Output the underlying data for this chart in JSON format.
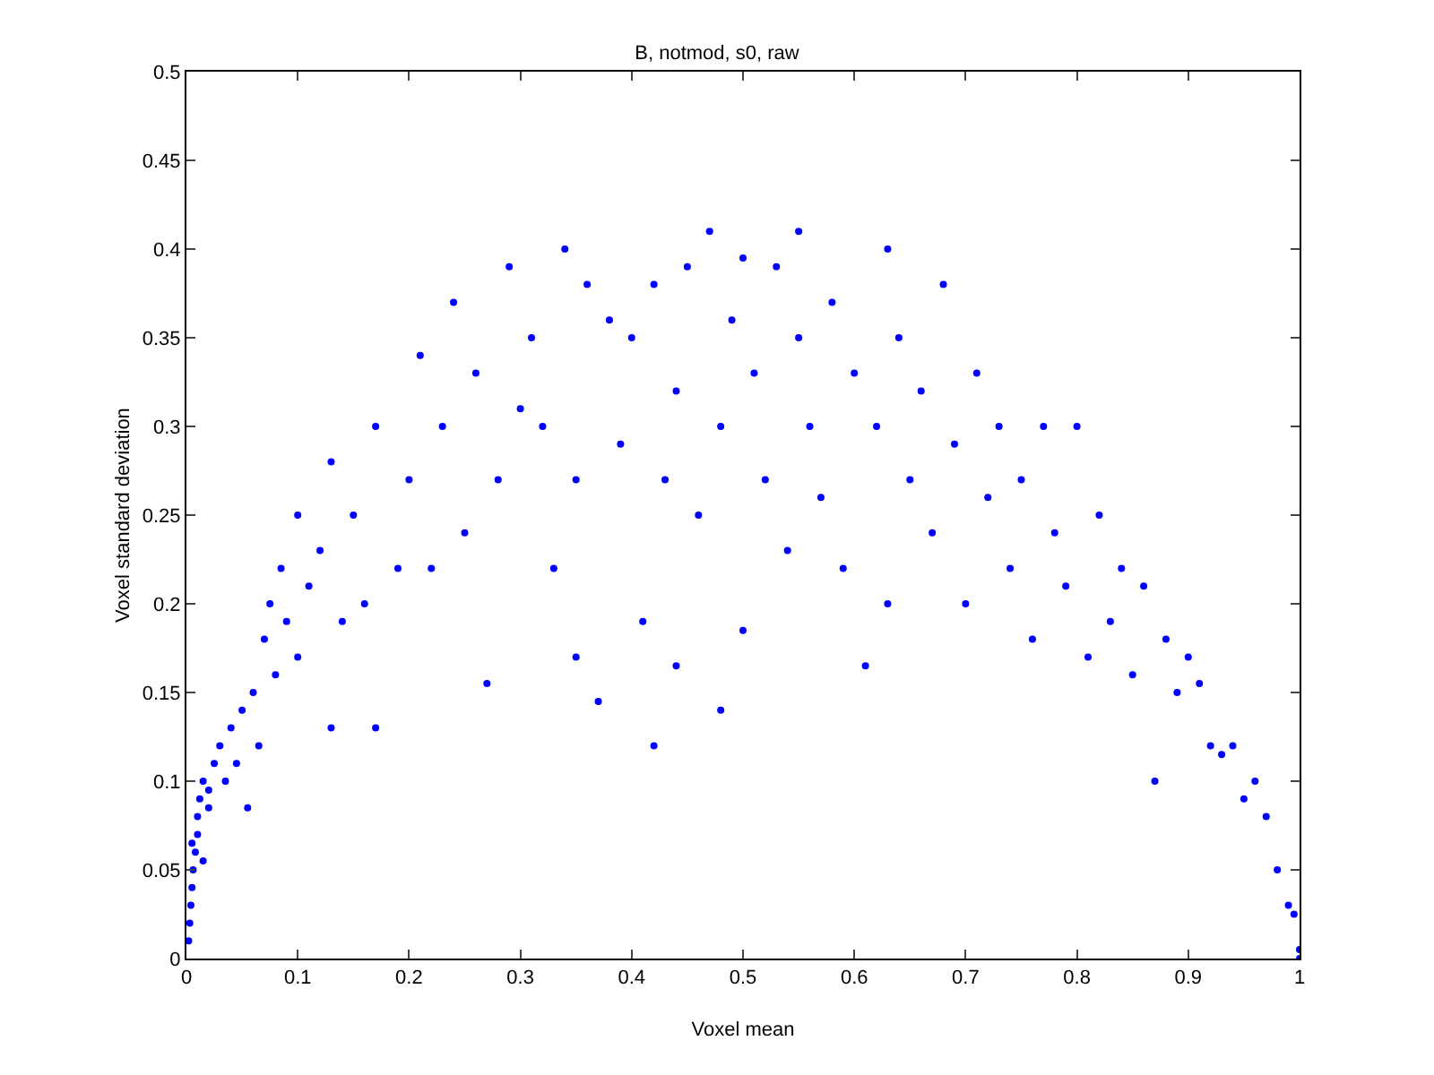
{
  "chart_data": {
    "type": "scatter",
    "title": "B, notmod, s0, raw",
    "xlabel": "Voxel mean",
    "ylabel": "Voxel standard deviation",
    "xlim": [
      0,
      1
    ],
    "ylim": [
      0,
      0.5
    ],
    "xticks": [
      0,
      0.1,
      0.2,
      0.3,
      0.4,
      0.5,
      0.6,
      0.7,
      0.8,
      0.9,
      1
    ],
    "yticks": [
      0,
      0.05,
      0.1,
      0.15,
      0.2,
      0.25,
      0.3,
      0.35,
      0.4,
      0.45,
      0.5
    ],
    "grid": false,
    "marker": "circle",
    "series": [
      {
        "color": "#0000ff",
        "x": [
          0.002,
          0.003,
          0.004,
          0.005,
          0.006,
          0.008,
          0.01,
          0.01,
          0.012,
          0.015,
          0.02,
          0.025,
          0.03,
          0.005,
          0.015,
          0.02,
          0.035,
          0.04,
          0.045,
          0.05,
          0.055,
          0.06,
          0.065,
          0.07,
          0.075,
          0.08,
          0.085,
          0.09,
          0.1,
          0.1,
          0.11,
          0.12,
          0.13,
          0.13,
          0.14,
          0.15,
          0.16,
          0.17,
          0.17,
          0.19,
          0.2,
          0.21,
          0.22,
          0.23,
          0.24,
          0.25,
          0.26,
          0.27,
          0.28,
          0.29,
          0.3,
          0.31,
          0.32,
          0.33,
          0.34,
          0.35,
          0.35,
          0.36,
          0.37,
          0.38,
          0.39,
          0.4,
          0.41,
          0.42,
          0.42,
          0.43,
          0.44,
          0.44,
          0.45,
          0.46,
          0.47,
          0.48,
          0.48,
          0.49,
          0.5,
          0.5,
          0.51,
          0.52,
          0.53,
          0.54,
          0.55,
          0.55,
          0.56,
          0.57,
          0.58,
          0.59,
          0.6,
          0.61,
          0.62,
          0.63,
          0.63,
          0.64,
          0.65,
          0.66,
          0.67,
          0.68,
          0.69,
          0.7,
          0.71,
          0.72,
          0.73,
          0.74,
          0.75,
          0.76,
          0.77,
          0.78,
          0.79,
          0.8,
          0.81,
          0.82,
          0.83,
          0.84,
          0.85,
          0.86,
          0.87,
          0.88,
          0.89,
          0.9,
          0.91,
          0.92,
          0.93,
          0.94,
          0.95,
          0.96,
          0.97,
          0.98,
          0.99,
          0.995,
          1,
          1
        ],
        "values": [
          0.01,
          0.02,
          0.03,
          0.04,
          0.05,
          0.06,
          0.07,
          0.08,
          0.09,
          0.1,
          0.085,
          0.11,
          0.12,
          0.065,
          0.055,
          0.095,
          0.1,
          0.13,
          0.11,
          0.14,
          0.085,
          0.15,
          0.12,
          0.18,
          0.2,
          0.16,
          0.22,
          0.19,
          0.17,
          0.25,
          0.21,
          0.23,
          0.28,
          0.13,
          0.19,
          0.25,
          0.2,
          0.3,
          0.13,
          0.22,
          0.27,
          0.34,
          0.22,
          0.3,
          0.37,
          0.24,
          0.33,
          0.155,
          0.27,
          0.39,
          0.31,
          0.35,
          0.3,
          0.22,
          0.4,
          0.27,
          0.17,
          0.38,
          0.145,
          0.36,
          0.29,
          0.35,
          0.19,
          0.38,
          0.12,
          0.27,
          0.165,
          0.32,
          0.39,
          0.25,
          0.41,
          0.14,
          0.3,
          0.36,
          0.395,
          0.185,
          0.33,
          0.27,
          0.39,
          0.23,
          0.35,
          0.41,
          0.3,
          0.26,
          0.37,
          0.22,
          0.33,
          0.165,
          0.3,
          0.4,
          0.2,
          0.35,
          0.27,
          0.32,
          0.24,
          0.38,
          0.29,
          0.2,
          0.33,
          0.26,
          0.3,
          0.22,
          0.27,
          0.18,
          0.3,
          0.24,
          0.21,
          0.3,
          0.17,
          0.25,
          0.19,
          0.22,
          0.16,
          0.21,
          0.1,
          0.18,
          0.15,
          0.17,
          0.155,
          0.12,
          0.115,
          0.12,
          0.09,
          0.1,
          0.08,
          0.05,
          0.03,
          0.025,
          0.005,
          0
        ]
      }
    ]
  }
}
